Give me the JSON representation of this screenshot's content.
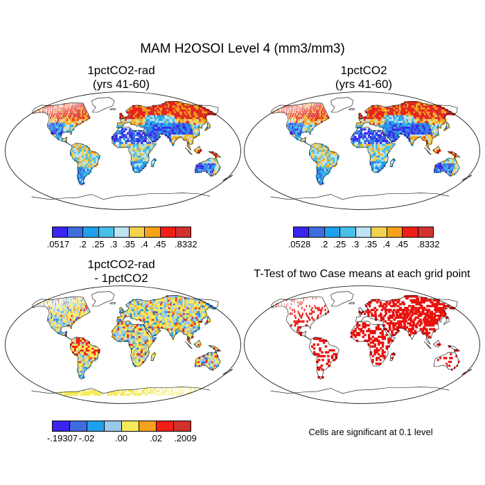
{
  "title": "MAM H2OSOI Level 4 (mm3/mm3)",
  "panels": [
    {
      "id": "a",
      "title1": "1pctCO2-rad",
      "title2": "(yrs 41-60)",
      "style": "abs"
    },
    {
      "id": "b",
      "title1": "1pctCO2",
      "title2": "(yrs 41-60)",
      "style": "abs"
    },
    {
      "id": "c",
      "title1": "1pctCO2-rad",
      "title2": "- 1pctCO2",
      "style": "diff"
    },
    {
      "id": "d",
      "title1": "T-Test of two Case means at each grid point",
      "title2": "",
      "style": "ttest"
    }
  ],
  "colorbars": [
    {
      "id": "a",
      "colors": [
        "#3b24f0",
        "#3f6cde",
        "#1fa0ec",
        "#48bfe8",
        "#bde3f2",
        "#f2d24e",
        "#f6a21b",
        "#f21f18",
        "#d2312e"
      ],
      "labels": [
        ".0517",
        ".2",
        ".25",
        ".3",
        ".35",
        ".4",
        ".45",
        ".8332"
      ]
    },
    {
      "id": "b",
      "colors": [
        "#3b24f0",
        "#3f6cde",
        "#1fa0ec",
        "#48bfe8",
        "#bde3f2",
        "#f2d24e",
        "#f6a21b",
        "#f21f18",
        "#d2312e"
      ],
      "labels": [
        ".0528",
        ".2",
        ".25",
        ".3",
        ".35",
        ".4",
        ".45",
        ".8332"
      ]
    },
    {
      "id": "c",
      "colors": [
        "#3b24f0",
        "#3f6cde",
        "#1fa0ec",
        "#9cc8ea",
        "#f6ea5a",
        "#f6a21b",
        "#f21f18",
        "#d2312e"
      ],
      "labels": [
        "-.19307",
        "-.02",
        ".00",
        ".02",
        ".2009"
      ]
    }
  ],
  "ttest_note": "Cells are significant at 0.1 level"
}
